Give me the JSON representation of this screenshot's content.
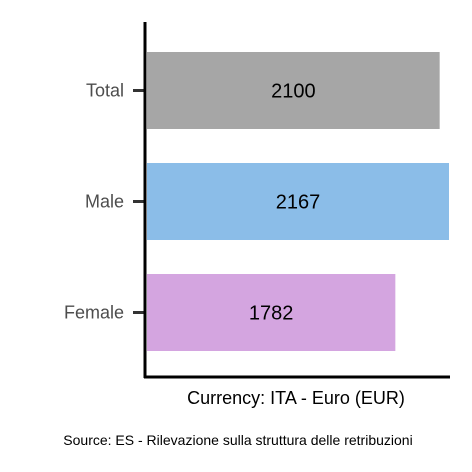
{
  "chart_data": {
    "type": "bar",
    "orientation": "horizontal",
    "categories": [
      "Total",
      "Male",
      "Female"
    ],
    "values": [
      2100,
      2167,
      1782
    ],
    "colors": [
      "#a6a6a6",
      "#8bbde8",
      "#d4a5e0"
    ],
    "xlabel": "Currency: ITA - Euro (EUR)",
    "ylabel": "",
    "xlim": [
      0,
      2167
    ],
    "grid": false,
    "legend": "none"
  },
  "caption": "Source:  ES - Rilevazione sulla struttura delle retribuzioni"
}
